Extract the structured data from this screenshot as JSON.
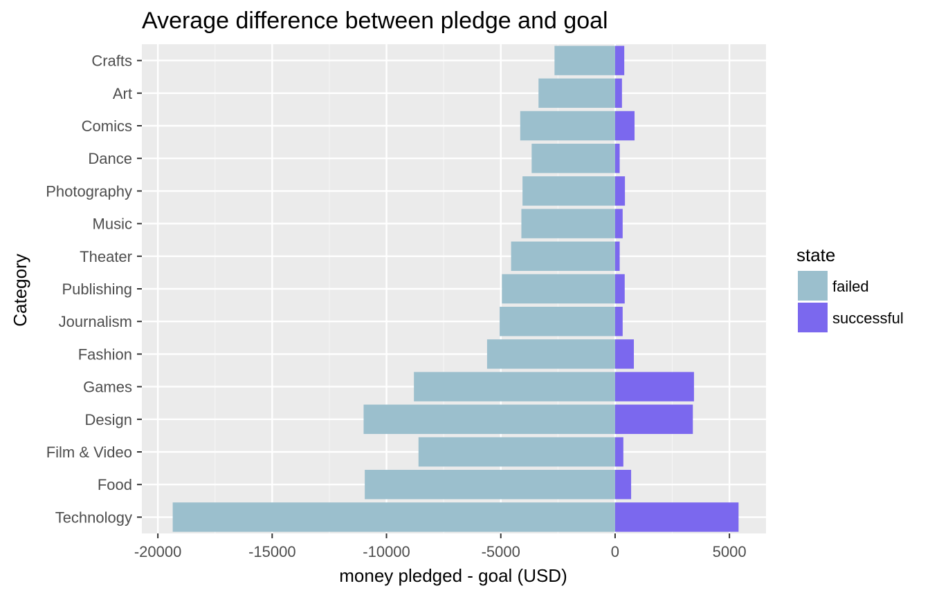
{
  "chart_data": {
    "type": "bar",
    "orientation": "horizontal",
    "title": "Average difference between pledge and goal",
    "xlabel": "money pledged - goal (USD)",
    "ylabel": "Category",
    "xlim": [
      -20700,
      6600
    ],
    "xticks": [
      -20000,
      -15000,
      -10000,
      -5000,
      0,
      5000
    ],
    "xtick_labels": [
      "-20000",
      "-15000",
      "-10000",
      "-5000",
      "0",
      "5000"
    ],
    "grid": true,
    "legend": {
      "title": "state",
      "position": "right"
    },
    "categories": [
      "Crafts",
      "Art",
      "Comics",
      "Dance",
      "Photography",
      "Music",
      "Theater",
      "Publishing",
      "Journalism",
      "Fashion",
      "Games",
      "Design",
      "Film & Video",
      "Food",
      "Technology"
    ],
    "series": [
      {
        "name": "failed",
        "color": "#9bbfcd",
        "values": [
          -2650,
          -3350,
          -4150,
          -3650,
          -4050,
          -4100,
          -4550,
          -4950,
          -5050,
          -5600,
          -8800,
          -11000,
          -8600,
          -10950,
          -19350
        ]
      },
      {
        "name": "successful",
        "color": "#7b68ee",
        "values": [
          400,
          300,
          850,
          200,
          430,
          330,
          200,
          420,
          330,
          820,
          3450,
          3400,
          360,
          700,
          5400
        ]
      }
    ]
  }
}
